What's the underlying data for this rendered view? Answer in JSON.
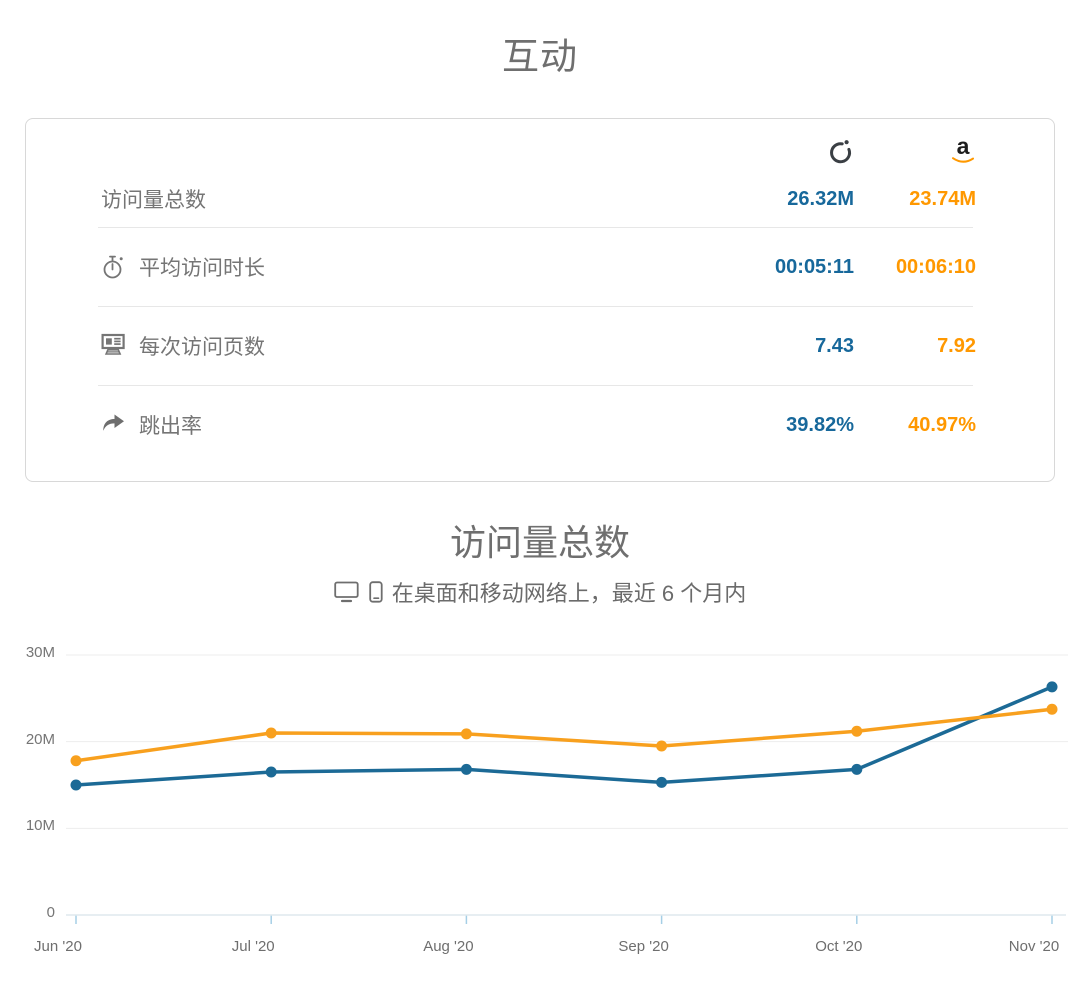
{
  "page": {
    "title": "互动"
  },
  "metrics_card": {
    "column_icons": [
      {
        "name": "site-ring-logo"
      },
      {
        "name": "amazon-logo",
        "letter": "a"
      }
    ],
    "rows": [
      {
        "icon": null,
        "label": "访问量总数",
        "values": [
          "26.32M",
          "23.74M"
        ]
      },
      {
        "icon": "stopwatch",
        "label": "平均访问时长",
        "values": [
          "00:05:11",
          "00:06:10"
        ]
      },
      {
        "icon": "pages",
        "label": "每次访问页数",
        "values": [
          "7.43",
          "7.92"
        ]
      },
      {
        "icon": "bounce-arrow",
        "label": "跳出率",
        "values": [
          "39.82%",
          "40.97%"
        ]
      }
    ]
  },
  "chart_section": {
    "title": "访问量总数",
    "subtitle": "在桌面和移动网络上，最近 6 个月内"
  },
  "chart_data": {
    "type": "line",
    "title": "访问量总数",
    "subtitle": "在桌面和移动网络上，最近 6 个月内",
    "categories": [
      "Jun '20",
      "Jul '20",
      "Aug '20",
      "Sep '20",
      "Oct '20",
      "Nov '20"
    ],
    "series": [
      {
        "name": "blue-site",
        "color": "#1c6a96",
        "unit": "M",
        "values": [
          15.0,
          16.5,
          16.8,
          15.3,
          16.8,
          26.32
        ]
      },
      {
        "name": "amazon",
        "color": "#f8a01e",
        "unit": "M",
        "values": [
          17.8,
          21.0,
          20.9,
          19.5,
          21.2,
          23.74
        ]
      }
    ],
    "yticks": [
      {
        "label": "30M",
        "value": 30
      },
      {
        "label": "20M",
        "value": 20
      },
      {
        "label": "10M",
        "value": 10
      },
      {
        "label": "0",
        "value": 0
      }
    ],
    "ylim": [
      0,
      30
    ],
    "grid": true,
    "legend": "none"
  },
  "colors": {
    "value_blue": "#17689b",
    "value_orange": "#ff9800",
    "text_gray": "#6f6f6f"
  }
}
